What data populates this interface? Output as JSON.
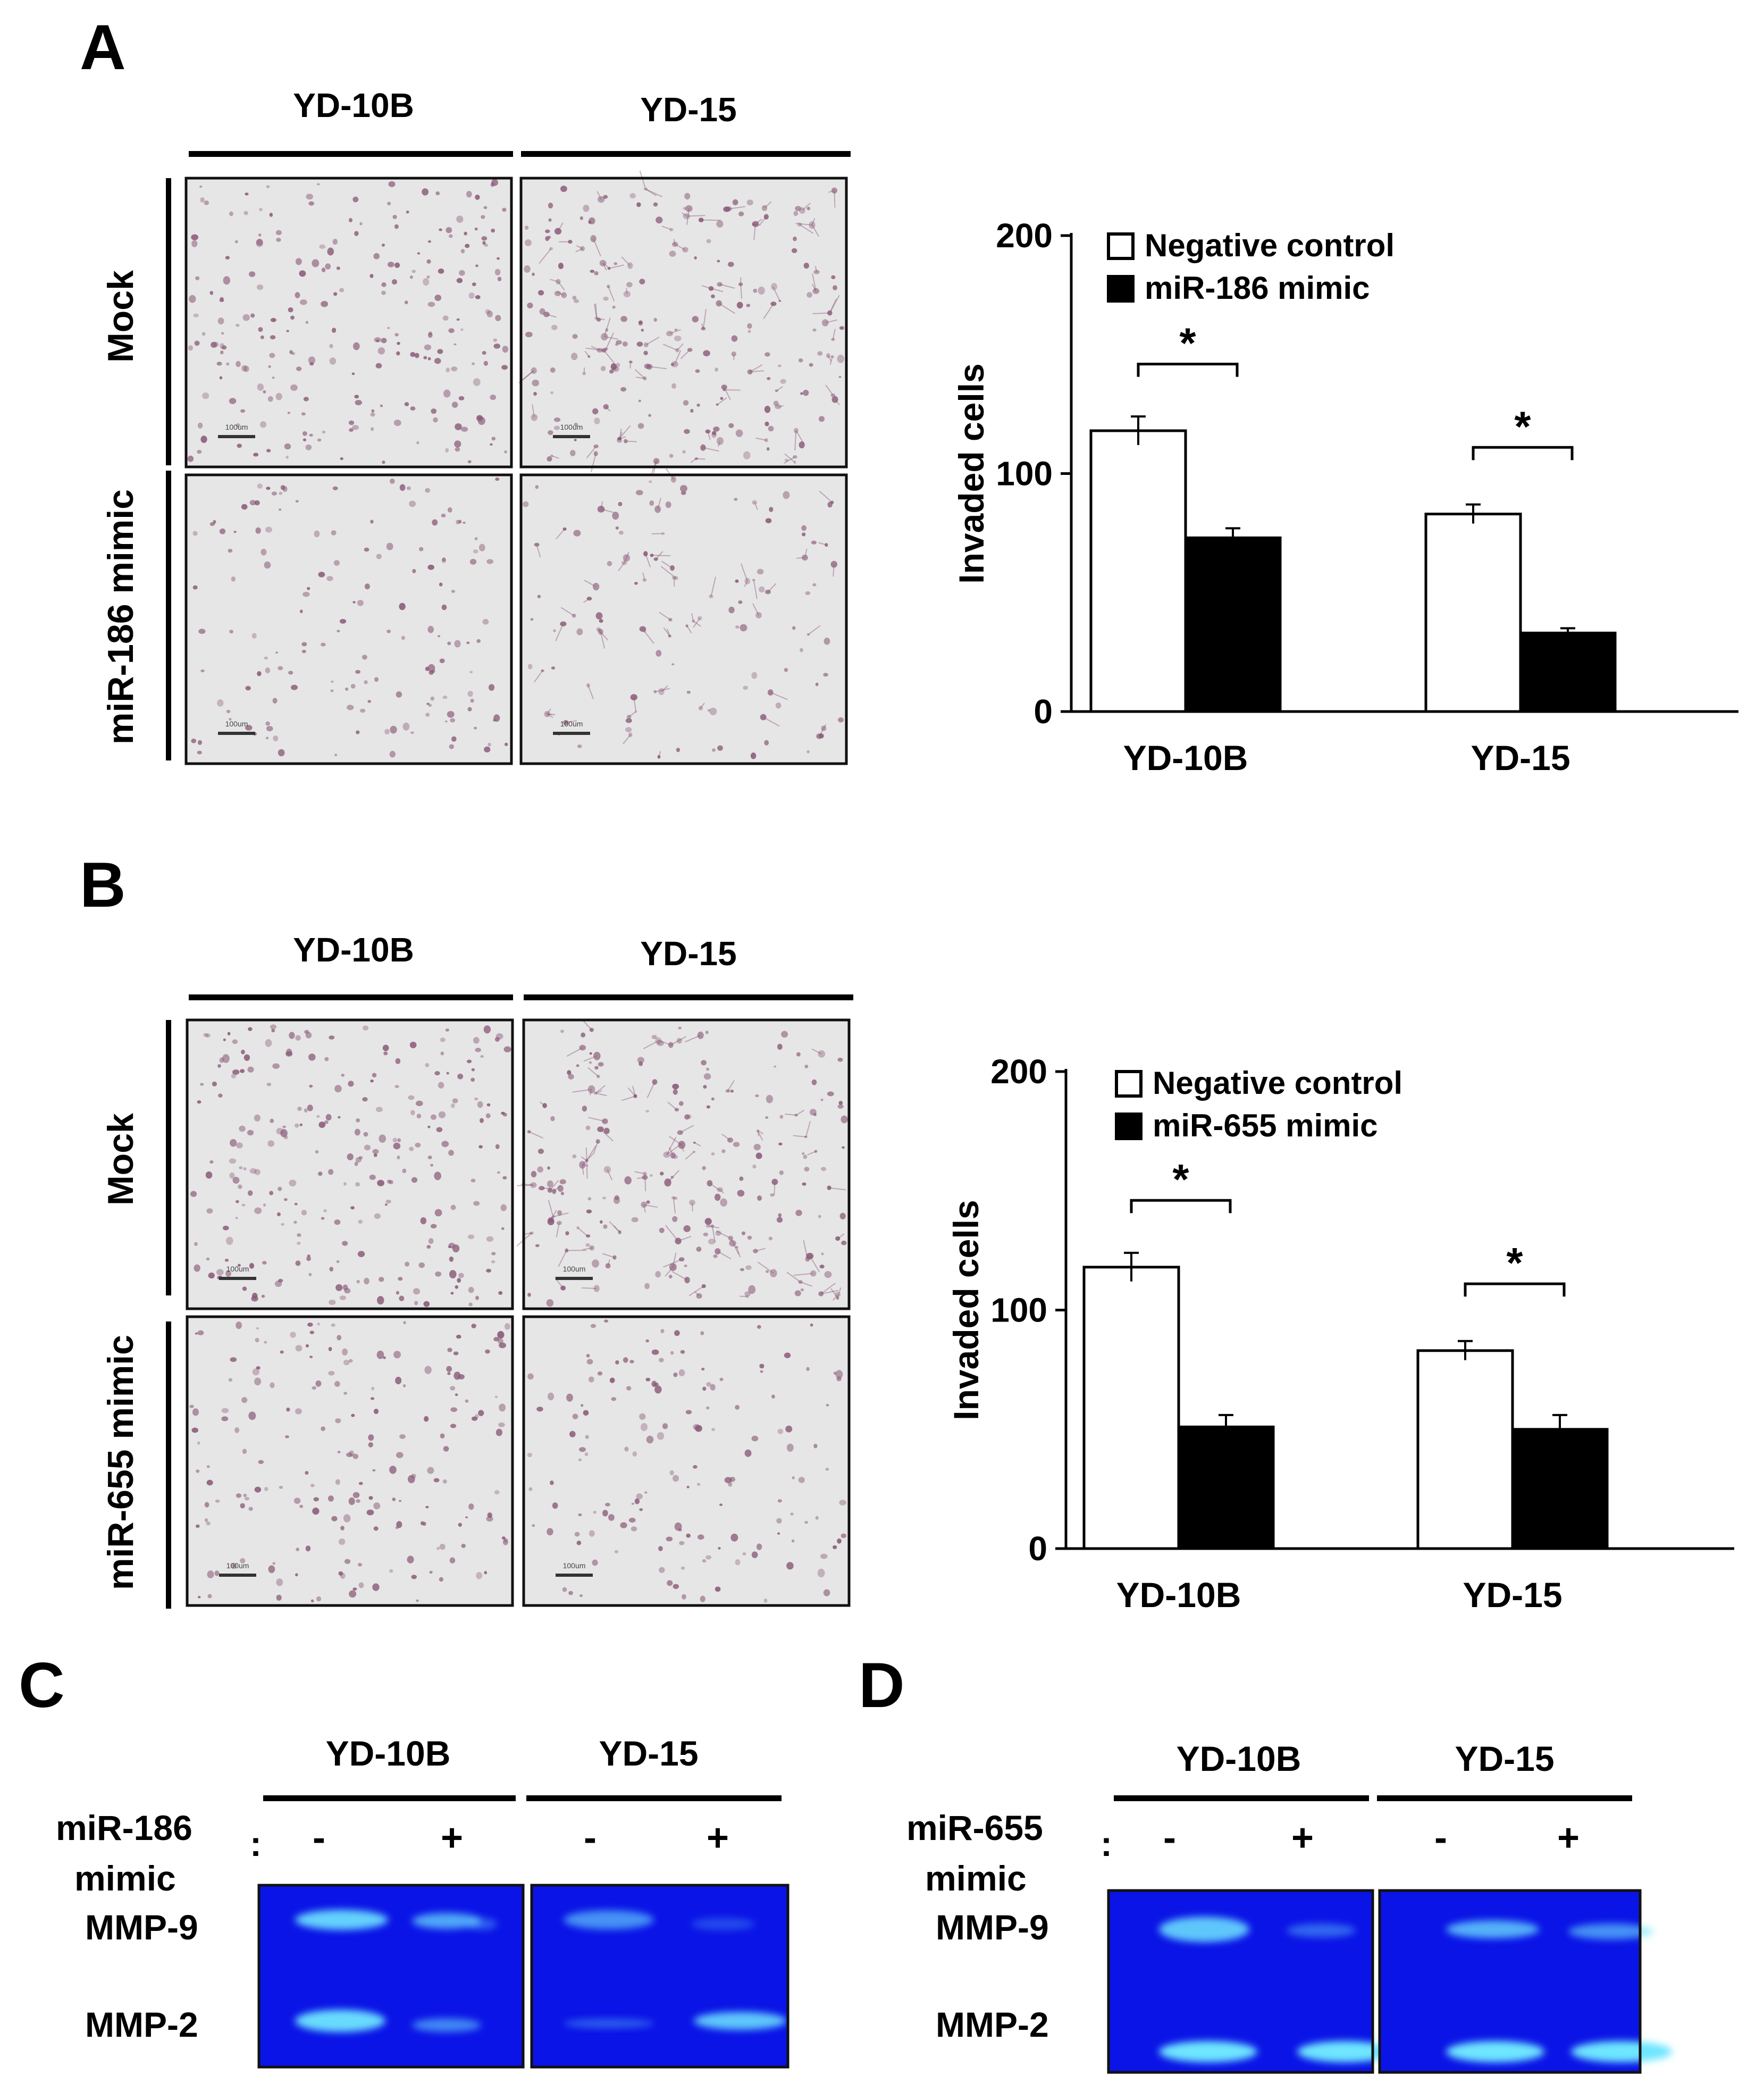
{
  "panels": {
    "A": {
      "letter": "A",
      "cell_lines": [
        "YD-10B",
        "YD-15"
      ],
      "rows": [
        "Mock",
        "miR-186 mimic"
      ],
      "scale_bar": "100um",
      "chart": {
        "ylabel": "Invaded cells",
        "yticks": [
          "0",
          "100",
          "200"
        ],
        "legend": [
          "Negative control",
          "miR-186 mimic"
        ],
        "categories": [
          "YD-10B",
          "YD-15"
        ],
        "significance": [
          "*",
          "*"
        ]
      }
    },
    "B": {
      "letter": "B",
      "cell_lines": [
        "YD-10B",
        "YD-15"
      ],
      "rows": [
        "Mock",
        "miR-655 mimic"
      ],
      "scale_bar": "100um",
      "chart": {
        "ylabel": "Invaded cells",
        "yticks": [
          "0",
          "100",
          "200"
        ],
        "legend": [
          "Negative control",
          "miR-655 mimic"
        ],
        "categories": [
          "YD-10B",
          "YD-15"
        ],
        "significance": [
          "*",
          "*"
        ]
      }
    },
    "C": {
      "letter": "C",
      "cell_lines": [
        "YD-10B",
        "YD-15"
      ],
      "treatment_line1": "miR-186",
      "treatment_line2": "mimic",
      "colon": ":",
      "lane_signs": [
        "-",
        "+",
        "-",
        "+"
      ],
      "bands": [
        "MMP-9",
        "MMP-2"
      ]
    },
    "D": {
      "letter": "D",
      "cell_lines": [
        "YD-10B",
        "YD-15"
      ],
      "treatment_line1": "miR-655",
      "treatment_line2": "mimic",
      "colon": ":",
      "lane_signs": [
        "-",
        "+",
        "-",
        "+"
      ],
      "bands": [
        "MMP-9",
        "MMP-2"
      ]
    }
  },
  "colors": {
    "gel_background": "#0a14e6",
    "gel_band": "#6ee6ff",
    "stain": "#8a5a78",
    "micro_background": "#e6e6e6"
  },
  "chart_data": [
    {
      "type": "bar",
      "ylabel": "Invaded cells",
      "ylim": [
        0,
        200
      ],
      "categories": [
        "YD-10B",
        "YD-15"
      ],
      "series": [
        {
          "name": "Negative control",
          "values": [
            118,
            83
          ],
          "errors": [
            6,
            4
          ]
        },
        {
          "name": "miR-186 mimic",
          "values": [
            73,
            33
          ],
          "errors": [
            4,
            2
          ]
        }
      ],
      "significance": [
        "*",
        "*"
      ],
      "legend": "top-left"
    },
    {
      "type": "bar",
      "ylabel": "Invaded cells",
      "ylim": [
        0,
        200
      ],
      "categories": [
        "YD-10B",
        "YD-15"
      ],
      "series": [
        {
          "name": "Negative control",
          "values": [
            118,
            83
          ],
          "errors": [
            6,
            4
          ]
        },
        {
          "name": "miR-655 mimic",
          "values": [
            51,
            50
          ],
          "errors": [
            5,
            6
          ]
        }
      ],
      "significance": [
        "*",
        "*"
      ],
      "legend": "top-left"
    }
  ]
}
